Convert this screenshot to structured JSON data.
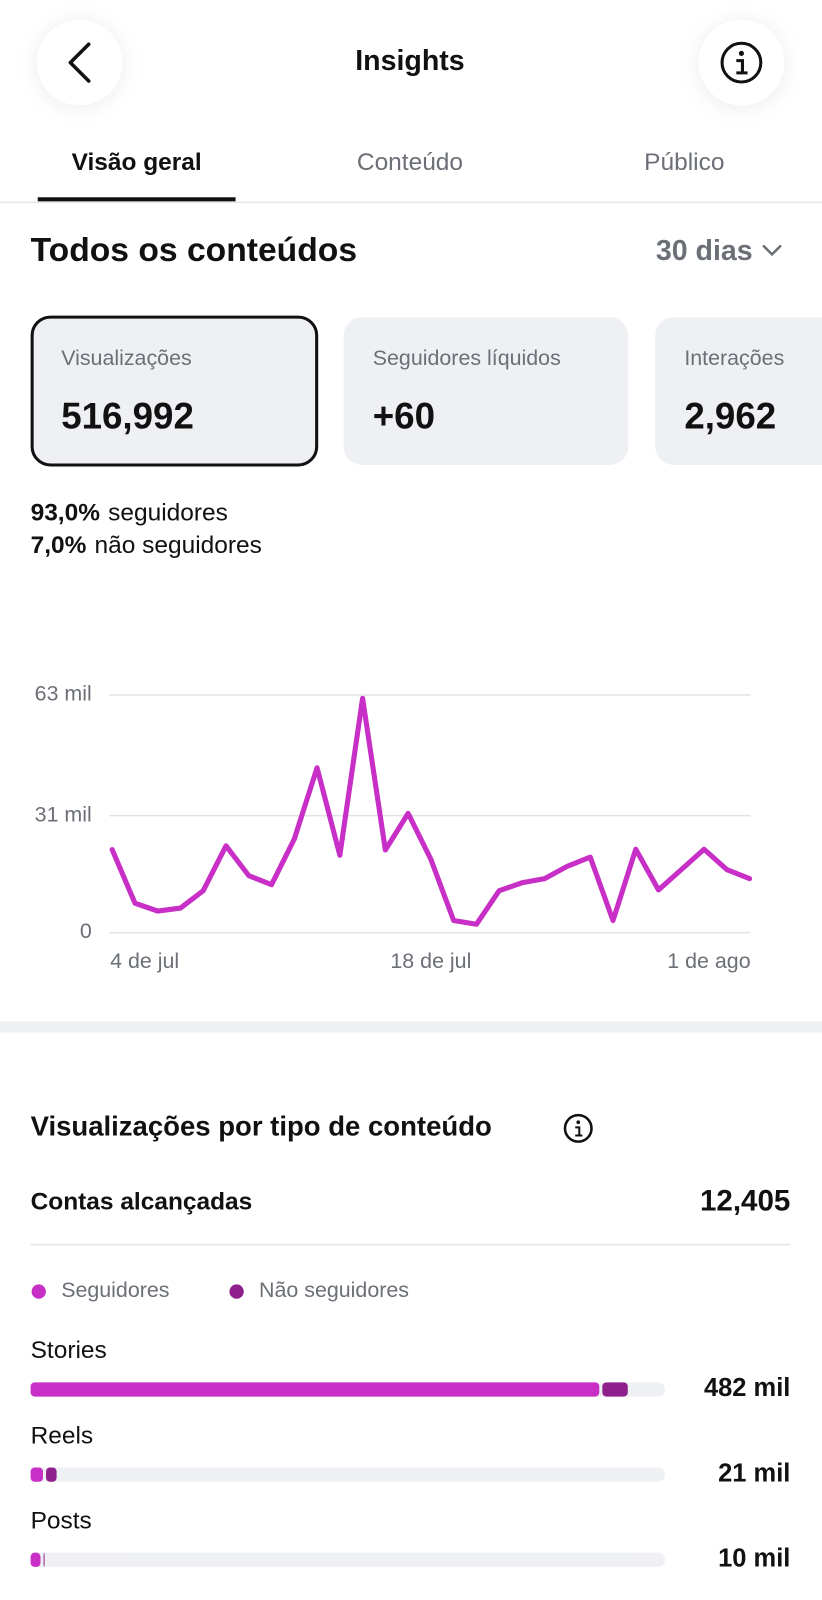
{
  "header": {
    "title": "Insights"
  },
  "tabs": [
    "Visão geral",
    "Conteúdo",
    "Público"
  ],
  "section": {
    "title": "Todos os conteúdos",
    "period": "30 dias"
  },
  "cards": [
    {
      "label": "Visualizações",
      "value": "516,992"
    },
    {
      "label": "Seguidores líquidos",
      "value": "+60"
    },
    {
      "label": "Interações",
      "value": "2,962"
    }
  ],
  "breakdown": [
    {
      "value": "93,0%",
      "label": "seguidores"
    },
    {
      "value": "7,0%",
      "label": "não seguidores"
    }
  ],
  "chart_data": [
    {
      "type": "line",
      "color": "#c72fc6",
      "grid": true,
      "categories": [
        "4 de jul",
        null,
        null,
        null,
        null,
        null,
        null,
        null,
        null,
        null,
        null,
        null,
        null,
        null,
        "18 de jul",
        null,
        null,
        null,
        null,
        null,
        null,
        null,
        null,
        null,
        null,
        null,
        null,
        null,
        "1 de ago"
      ],
      "values": [
        22,
        7.8,
        5.7,
        6.5,
        11.1,
        23,
        15.1,
        12.7,
        24.8,
        43.7,
        20.5,
        62.1,
        21.9,
        31.6,
        19.4,
        3.2,
        2.2,
        11.1,
        13.2,
        14.3,
        17.6,
        20,
        3.2,
        22.1,
        11.3,
        16.7,
        22.1,
        16.7,
        14.3
      ],
      "ylim": [
        0,
        63
      ],
      "yticks": [
        0,
        {
          "value": 31,
          "label": "31 mil"
        },
        {
          "value": 63,
          "label": "63 mil"
        }
      ]
    },
    {
      "type": "stacked-hbar",
      "title": "Visualizações por tipo de conteúdo",
      "reach_label": "Contas alcançadas",
      "reach_value": "12,405",
      "categories": [
        "Stories",
        "Reels",
        "Posts"
      ],
      "series": [
        {
          "name": "Seguidores",
          "color": "#c72fc6",
          "values": [
            459,
            10,
            8
          ]
        },
        {
          "name": "Não seguidores",
          "color": "#8e1f8b",
          "values": [
            23,
            11,
            2
          ]
        }
      ],
      "total_labels": [
        "482 mil",
        "21 mil",
        "10 mil"
      ],
      "xlim": [
        0,
        512
      ]
    }
  ]
}
